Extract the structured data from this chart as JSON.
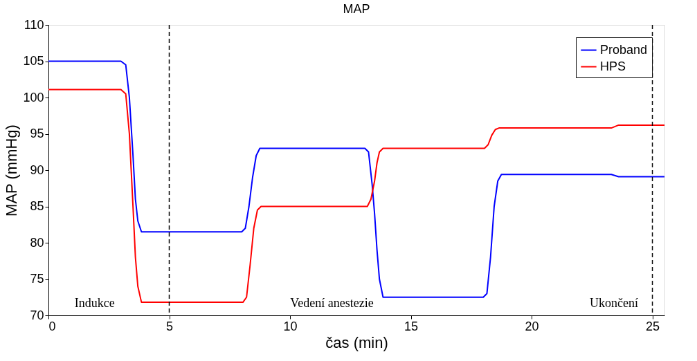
{
  "chart_data": {
    "type": "line",
    "title": "MAP",
    "xlabel": "čas (min)",
    "ylabel": "MAP (mmHg)",
    "xlim": [
      0,
      25.5
    ],
    "xticks": [
      0,
      5,
      10,
      15,
      20,
      25
    ],
    "ylim": [
      70,
      110
    ],
    "yticks": [
      70,
      75,
      80,
      85,
      90,
      95,
      100,
      105,
      110
    ],
    "grid": false,
    "legend": "top right",
    "line_style": "solid",
    "marker": "none",
    "series": [
      {
        "name": "Proband",
        "color": "#0000ff",
        "x": [
          0,
          3.0,
          3.2,
          3.35,
          3.5,
          3.6,
          3.7,
          3.85,
          8.0,
          8.15,
          8.3,
          8.45,
          8.6,
          8.75,
          13.1,
          13.25,
          13.4,
          13.5,
          13.6,
          13.7,
          13.85,
          18.0,
          18.15,
          18.3,
          18.45,
          18.6,
          18.75,
          23.3,
          23.6,
          25.5
        ],
        "values": [
          105,
          105,
          104.5,
          100,
          92,
          86,
          83,
          81.5,
          81.5,
          82,
          85,
          89,
          92,
          93,
          93,
          92.5,
          88,
          84,
          79,
          75,
          72.5,
          72.5,
          73,
          78,
          85,
          88.5,
          89.4,
          89.4,
          89.1,
          89.1
        ]
      },
      {
        "name": "HPS",
        "color": "#ff0000",
        "x": [
          0,
          3.0,
          3.2,
          3.35,
          3.5,
          3.6,
          3.7,
          3.85,
          8.05,
          8.2,
          8.35,
          8.5,
          8.65,
          8.8,
          13.2,
          13.35,
          13.5,
          13.6,
          13.7,
          13.85,
          18.05,
          18.2,
          18.35,
          18.5,
          18.65,
          23.3,
          23.6,
          25.5
        ],
        "values": [
          101.1,
          101.1,
          100.5,
          95,
          85,
          78,
          74,
          71.8,
          71.8,
          72.5,
          77,
          82,
          84.5,
          85,
          85,
          86,
          88.5,
          91,
          92.5,
          93,
          93,
          93.5,
          94.8,
          95.6,
          95.8,
          95.8,
          96.2,
          96.2
        ]
      }
    ],
    "ref_lines": [
      {
        "axis": "x",
        "value": 5,
        "color": "#000000",
        "line_style": "dashed"
      },
      {
        "axis": "x",
        "value": 25,
        "color": "#000000",
        "line_style": "dashed"
      }
    ],
    "annotations": [
      "Indukce",
      "Vedení anestezie",
      "Ukončení"
    ]
  }
}
